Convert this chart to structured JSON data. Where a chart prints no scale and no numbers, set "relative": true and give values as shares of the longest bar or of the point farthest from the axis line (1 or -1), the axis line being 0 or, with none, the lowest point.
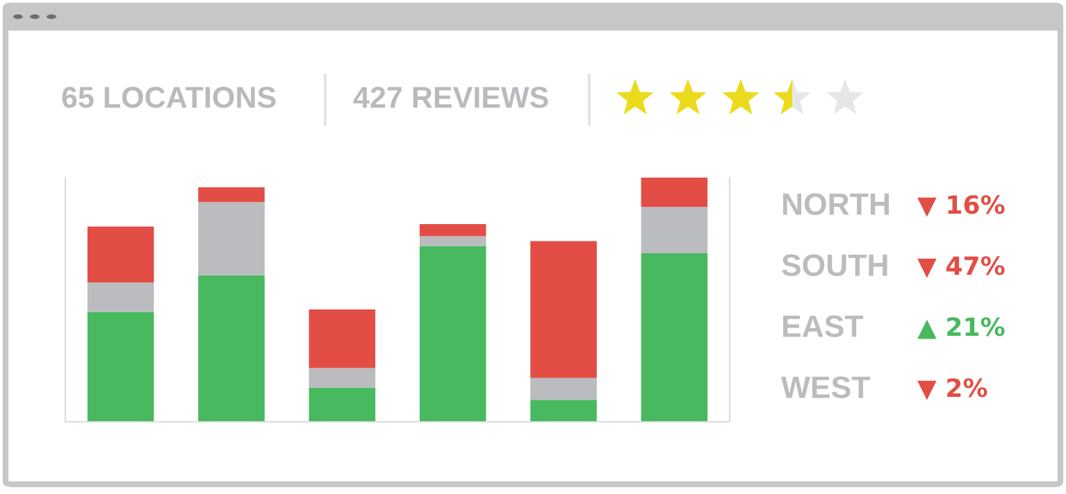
{
  "chart_data": [
    {
      "type": "bar",
      "stacked": true,
      "relative": true,
      "categories": [
        null,
        null,
        null,
        null,
        null,
        null
      ],
      "series": [
        {
          "color": "#48b95e",
          "values": [
            0.45,
            0.6,
            0.14,
            0.72,
            0.09,
            0.69
          ]
        },
        {
          "color": "#bbbcbf",
          "values": [
            0.12,
            0.3,
            0.08,
            0.04,
            0.09,
            0.19
          ]
        },
        {
          "color": "#e24e45",
          "values": [
            0.23,
            0.06,
            0.24,
            0.05,
            0.56,
            0.12
          ]
        }
      ],
      "annotations": [
        "65 LOCATIONS",
        "427 REVIEWS"
      ]
    },
    {
      "type": "other",
      "categories": [
        "NORTH",
        "SOUTH",
        "EAST",
        "WEST"
      ],
      "colors": [
        "#e24e45",
        "#e24e45",
        "#48b95e",
        "#e24e45"
      ],
      "value_labels": [
        "▼ 16%",
        "▼ 47%",
        "▲ 21%",
        "▼ 2%"
      ]
    }
  ]
}
